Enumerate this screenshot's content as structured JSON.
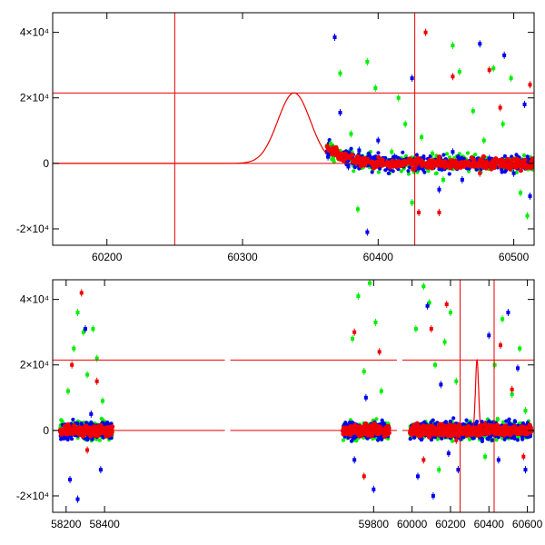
{
  "chart_data": [
    {
      "type": "scatter",
      "title": "",
      "xlabel": "",
      "ylabel": "",
      "xlim": [
        60160,
        60515
      ],
      "ylim": [
        -25000,
        46000
      ],
      "xticks": [
        "60200",
        "60300",
        "60400",
        "60500"
      ],
      "xtick_values": [
        60200,
        60300,
        60400,
        60500
      ],
      "yticks": [
        "4×10⁴",
        "2×10⁴",
        "0",
        "-2×10⁴"
      ],
      "ytick_values": [
        40000,
        20000,
        0,
        -20000
      ],
      "grid": false,
      "legend": "none",
      "series": [
        {
          "color": "#00ee00",
          "points": [
            [
              60365,
              6000
            ],
            [
              60372,
              27500
            ],
            [
              60380,
              9000
            ],
            [
              60385,
              -14000
            ],
            [
              60392,
              31000
            ],
            [
              60398,
              23000
            ],
            [
              60410,
              3500
            ],
            [
              60415,
              20000
            ],
            [
              60420,
              12000
            ],
            [
              60425,
              -12000
            ],
            [
              60432,
              8000
            ],
            [
              60440,
              3000
            ],
            [
              60448,
              -5000
            ],
            [
              60455,
              36000
            ],
            [
              60460,
              28000
            ],
            [
              60470,
              16000
            ],
            [
              60478,
              7000
            ],
            [
              60485,
              29000
            ],
            [
              60492,
              12000
            ],
            [
              60498,
              26000
            ],
            [
              60505,
              -9000
            ],
            [
              60510,
              -16000
            ]
          ]
        },
        {
          "color": "#0000ee",
          "points": [
            [
              60363,
              2000
            ],
            [
              60368,
              38500
            ],
            [
              60372,
              15500
            ],
            [
              60378,
              -1000
            ],
            [
              60386,
              4000
            ],
            [
              60392,
              -21000
            ],
            [
              60400,
              7000
            ],
            [
              60412,
              2000
            ],
            [
              60425,
              26000
            ],
            [
              60430,
              -1500
            ],
            [
              60445,
              -8000
            ],
            [
              60455,
              3500
            ],
            [
              60462,
              -5000
            ],
            [
              60475,
              36500
            ],
            [
              60482,
              1500
            ],
            [
              60493,
              33000
            ],
            [
              60500,
              -3000
            ],
            [
              60508,
              18000
            ],
            [
              60512,
              -10000
            ]
          ]
        },
        {
          "color": "#ee0000",
          "points": [
            [
              60430,
              -15000
            ],
            [
              60435,
              40000
            ],
            [
              60445,
              -15000
            ],
            [
              60455,
              26500
            ],
            [
              60475,
              -3000
            ],
            [
              60482,
              28500
            ],
            [
              60490,
              17000
            ],
            [
              60512,
              24000
            ]
          ]
        }
      ],
      "fitted_curve": {
        "color": "#ee0000",
        "peak_x": 60338,
        "peak_y": 21500,
        "sigma": 12,
        "decay_from_x": 60362,
        "decay_from_y": 5500
      },
      "reference_lines": {
        "color": "#ee0000",
        "vertical_x": [
          60250,
          60427
        ],
        "horizontal_y": [
          0,
          21500
        ]
      }
    },
    {
      "type": "scatter",
      "title": "",
      "xlabel": "",
      "ylabel": "",
      "xlim": [
        58130,
        60635
      ],
      "ylim": [
        -25000,
        46000
      ],
      "broken_axis": true,
      "segments": [
        [
          58170,
          58440
        ],
        [
          59640,
          59880
        ],
        [
          59990,
          60620
        ]
      ],
      "xticks": [
        "58200",
        "58400",
        "59800",
        "60000",
        "60200",
        "60400",
        "60600"
      ],
      "xtick_values": [
        58200,
        58400,
        59800,
        60000,
        60200,
        60400,
        60600
      ],
      "yticks": [
        "4×10⁴",
        "2×10⁴",
        "0",
        "-2×10⁴"
      ],
      "ytick_values": [
        40000,
        20000,
        0,
        -20000
      ],
      "grid": false,
      "legend": "none",
      "series": [
        {
          "color": "#00ee00",
          "points": [
            [
              58210,
              12000
            ],
            [
              58240,
              25000
            ],
            [
              58260,
              36000
            ],
            [
              58290,
              30000
            ],
            [
              58310,
              17000
            ],
            [
              58340,
              31000
            ],
            [
              58360,
              22000
            ],
            [
              58390,
              9000
            ],
            [
              59690,
              28000
            ],
            [
              59720,
              41000
            ],
            [
              59750,
              18000
            ],
            [
              59780,
              45000
            ],
            [
              59810,
              33000
            ],
            [
              59840,
              12000
            ],
            [
              60020,
              31000
            ],
            [
              60060,
              44000
            ],
            [
              60090,
              39000
            ],
            [
              60120,
              20000
            ],
            [
              60140,
              -12000
            ],
            [
              60170,
              27000
            ],
            [
              60200,
              36000
            ],
            [
              60230,
              15000
            ],
            [
              60380,
              -8000
            ],
            [
              60430,
              20000
            ],
            [
              60470,
              34000
            ],
            [
              60520,
              11000
            ],
            [
              60560,
              25000
            ],
            [
              60590,
              6000
            ]
          ]
        },
        {
          "color": "#0000ee",
          "points": [
            [
              58220,
              -15000
            ],
            [
              58260,
              -21000
            ],
            [
              58300,
              31000
            ],
            [
              58330,
              5000
            ],
            [
              58380,
              -12000
            ],
            [
              59700,
              -9000
            ],
            [
              59760,
              10000
            ],
            [
              59800,
              -18000
            ],
            [
              59850,
              2000
            ],
            [
              60030,
              -14000
            ],
            [
              60080,
              38000
            ],
            [
              60110,
              -20000
            ],
            [
              60150,
              14000
            ],
            [
              60190,
              -7000
            ],
            [
              60240,
              -12000
            ],
            [
              60400,
              29000
            ],
            [
              60450,
              -9000
            ],
            [
              60500,
              36000
            ],
            [
              60550,
              19000
            ],
            [
              60590,
              -12000
            ]
          ]
        },
        {
          "color": "#ee0000",
          "points": [
            [
              58230,
              20000
            ],
            [
              58280,
              42000
            ],
            [
              58310,
              -6000
            ],
            [
              58360,
              15000
            ],
            [
              59700,
              30000
            ],
            [
              59750,
              -14000
            ],
            [
              59830,
              24000
            ],
            [
              60060,
              -9000
            ],
            [
              60100,
              31000
            ],
            [
              60180,
              38500
            ],
            [
              60230,
              -3000
            ],
            [
              60380,
              2000
            ],
            [
              60460,
              26000
            ],
            [
              60520,
              12500
            ],
            [
              60580,
              -8000
            ]
          ]
        }
      ],
      "fitted_curve": {
        "color": "#ee0000",
        "peak_x": 60338,
        "peak_y": 21500,
        "sigma": 8,
        "decay_from_x": 60362,
        "decay_from_y": 5500
      },
      "reference_lines": {
        "color": "#ee0000",
        "vertical_x": [
          60250,
          60427
        ],
        "horizontal_y": [
          0,
          21500
        ]
      }
    }
  ]
}
